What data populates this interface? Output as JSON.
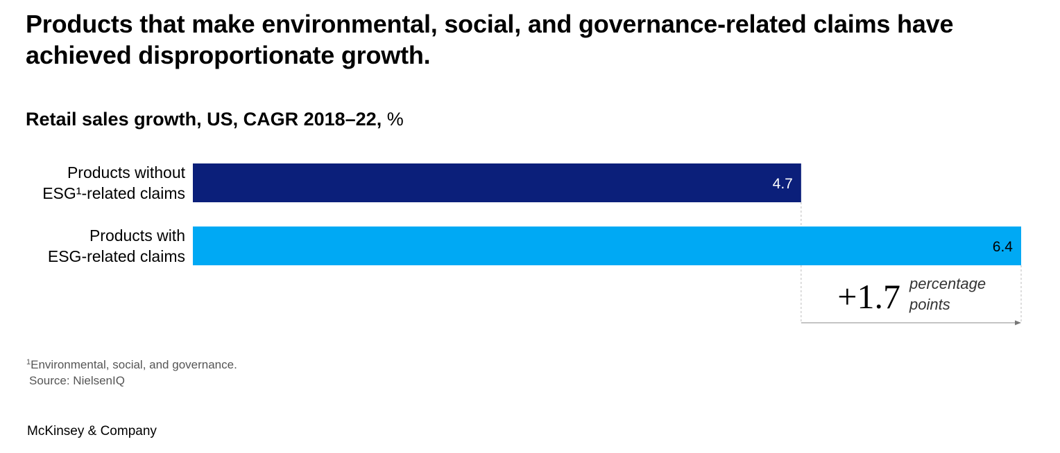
{
  "title": "Products that make environmental, social, and governance-related claims have achieved disproportionate growth.",
  "subtitle": {
    "bold": "Retail sales growth, US, CAGR 2018–22,",
    "unit": "%"
  },
  "chart_data": {
    "type": "bar",
    "orientation": "horizontal",
    "title": "Retail sales growth, US, CAGR 2018–22, %",
    "categories": [
      [
        "Products without",
        "ESG¹-related claims"
      ],
      [
        "Products with",
        "ESG-related claims"
      ]
    ],
    "values": [
      4.7,
      6.4
    ],
    "value_labels": [
      "4.7",
      "6.4"
    ],
    "colors": [
      "#0b1f7a",
      "#00a9f4"
    ],
    "xlim": [
      0,
      6.4
    ],
    "annotation": {
      "difference": "+1.7",
      "unit_line1": "percentage",
      "unit_line2": "points"
    }
  },
  "footnote": {
    "marker": "1",
    "text": "Environmental, social, and governance.",
    "source": "Source: NielsenIQ"
  },
  "brand": "McKinsey & Company"
}
